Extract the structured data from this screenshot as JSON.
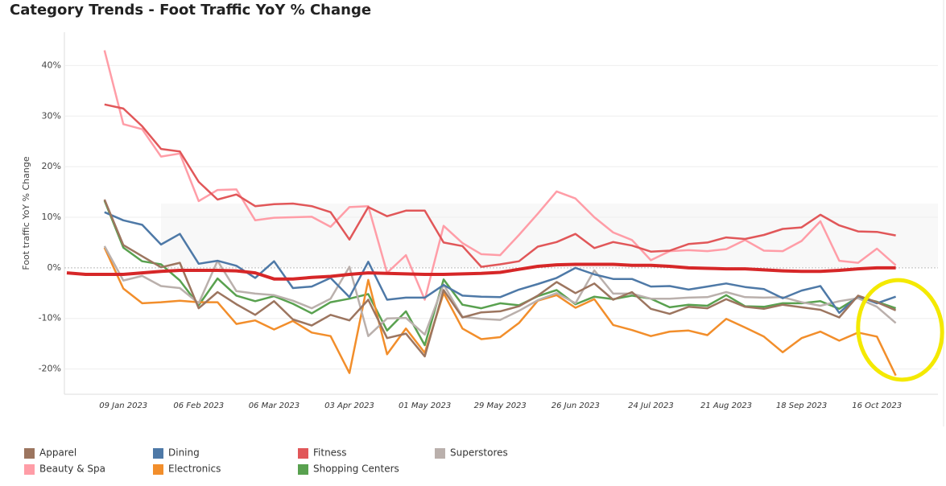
{
  "chart_data": {
    "type": "line",
    "title": "Category Trends - Foot Traffic YoY % Change",
    "y_label": "Foot traffic YoY % Change",
    "categories": [
      null,
      null,
      null,
      "09 Jan 2023",
      null,
      null,
      null,
      "06 Feb 2023",
      null,
      null,
      null,
      "06 Mar 2023",
      null,
      null,
      null,
      "03 Apr 2023",
      null,
      null,
      null,
      "01 May 2023",
      null,
      null,
      null,
      "29 May 2023",
      null,
      null,
      null,
      "26 Jun 2023",
      null,
      null,
      null,
      "24 Jul 2023",
      null,
      null,
      null,
      "21 Aug 2023",
      null,
      null,
      null,
      "18 Sep 2023",
      null,
      null,
      null,
      "16 Oct 2023",
      null
    ],
    "ylim": [
      -25,
      45
    ],
    "yticks": [
      {
        "value": -20,
        "label": "-20%"
      },
      {
        "value": -10,
        "label": "-10%"
      },
      {
        "value": 0,
        "label": "0%"
      },
      {
        "value": 10,
        "label": "10%"
      },
      {
        "value": 20,
        "label": "20%"
      },
      {
        "value": 30,
        "label": "30%"
      },
      {
        "value": 40,
        "label": "40%"
      }
    ],
    "grid": true,
    "legend": "bottom",
    "series": [
      {
        "name": "Apparel",
        "color": "#9c755f",
        "values": [
          null,
          null,
          13.5,
          4.5,
          2.3,
          0.1,
          1,
          -8,
          -4.8,
          -7.2,
          -9.3,
          -6.6,
          -10.2,
          -11.4,
          -9.3,
          -10.4,
          -6.3,
          -13.9,
          -13,
          -17.5,
          -4.4,
          -9.8,
          -8.8,
          -8.6,
          -7.6,
          -5.5,
          -2.8,
          -5,
          -3.1,
          -6.3,
          -4.8,
          -8.1,
          -9.1,
          -7.7,
          -8,
          -6.2,
          -7.7,
          -8.1,
          -7.3,
          -7.8,
          -8.3,
          -9.8,
          -5.5,
          -6.8,
          -8.4
        ]
      },
      {
        "name": "Dining",
        "color": "#4e79a7",
        "values": [
          null,
          null,
          11,
          9.4,
          8.5,
          4.6,
          6.7,
          0.8,
          1.4,
          0.4,
          -2,
          1.3,
          -4,
          -3.7,
          -2,
          -5.8,
          1.2,
          -6.3,
          -5.9,
          -5.9,
          -3.4,
          -5.5,
          -5.7,
          -5.8,
          -4.3,
          -3.2,
          -2,
          0,
          -1.3,
          -2.2,
          -2.2,
          -3.7,
          -3.6,
          -4.3,
          -3.7,
          -3.1,
          -3.8,
          -4.2,
          -6,
          -4.5,
          -3.6,
          -8.9,
          -5.6,
          -7,
          -5.7
        ]
      },
      {
        "name": "Fitness",
        "color": "#e15759",
        "values": [
          null,
          null,
          32.3,
          31.5,
          28,
          23.5,
          23,
          17,
          13.5,
          14.5,
          12.2,
          12.6,
          12.7,
          12.2,
          11,
          5.6,
          12,
          10.2,
          11.3,
          11.3,
          5,
          4.3,
          0.2,
          0.7,
          1.3,
          4.2,
          5.1,
          6.7,
          3.9,
          5.1,
          4.4,
          3.2,
          3.4,
          4.7,
          5,
          6,
          5.7,
          6.5,
          7.7,
          8,
          10.5,
          8.4,
          7.2,
          7.1,
          6.4
        ]
      },
      {
        "name": "Superstores",
        "color": "#bab0ac",
        "values": [
          null,
          null,
          4.3,
          -2.5,
          -1.6,
          -3.6,
          -4,
          -7,
          1.4,
          -4.6,
          -5.1,
          -5.4,
          -6.5,
          -8,
          -6.1,
          0.2,
          -13.5,
          -10,
          -9.9,
          -13.2,
          -3.3,
          -9.7,
          -10.1,
          -10.3,
          -8.5,
          -6.4,
          -5,
          -7,
          -0.5,
          -5.1,
          -5.1,
          -6.1,
          -6.1,
          -5.9,
          -5.8,
          -4.8,
          -5.8,
          -5.9,
          -5.8,
          -6.8,
          -7.5,
          -6.6,
          -6,
          -7.7,
          -10.9
        ]
      },
      {
        "name": "Beauty & Spa",
        "color": "#ff9da7",
        "values": [
          null,
          null,
          43,
          28.4,
          27.4,
          22,
          22.6,
          13.2,
          15.4,
          15.5,
          9.4,
          9.9,
          10,
          10.1,
          8.1,
          12,
          12.2,
          -1,
          2.5,
          -6.3,
          8.3,
          4.9,
          2.7,
          2.5,
          6.5,
          10.7,
          15.1,
          13.7,
          10,
          7,
          5.5,
          1.5,
          3.3,
          3.5,
          3.3,
          3.7,
          5.5,
          3.4,
          3.3,
          5.3,
          9.2,
          1.4,
          1,
          3.8,
          0.5
        ]
      },
      {
        "name": "Electronics",
        "color": "#f28e2b",
        "values": [
          null,
          null,
          4,
          -4.1,
          -7,
          -6.8,
          -6.5,
          -6.8,
          -6.8,
          -11.1,
          -10.4,
          -12.2,
          -10.5,
          -12.8,
          -13.5,
          -20.8,
          -2.4,
          -17.1,
          -12,
          -16.8,
          -5,
          -12,
          -14.1,
          -13.7,
          -10.9,
          -6.5,
          -5.4,
          -7.9,
          -6.2,
          -11.3,
          -12.3,
          -13.5,
          -12.6,
          -12.4,
          -13.3,
          -10.1,
          -11.8,
          -13.6,
          -16.7,
          -13.9,
          -12.6,
          -14.4,
          -12.8,
          -13.6,
          -21.3
        ]
      },
      {
        "name": "Shopping Centers",
        "color": "#59a14f",
        "values": [
          null,
          null,
          13.3,
          4,
          1.3,
          0.7,
          -2.5,
          -7.4,
          -2.1,
          -5.5,
          -6.6,
          -5.6,
          -7.1,
          -9,
          -6.8,
          -6.1,
          -5.2,
          -12.4,
          -8.6,
          -15.3,
          -2.3,
          -7.3,
          -8,
          -7,
          -7.4,
          -5.6,
          -4.4,
          -7.2,
          -5.7,
          -6.2,
          -5.5,
          -6.1,
          -7.8,
          -7.3,
          -7.5,
          -5.4,
          -7.6,
          -7.7,
          -7,
          -7,
          -6.6,
          -8.1,
          -5.8,
          -6.7,
          -8
        ]
      },
      {
        "color": "#d62728",
        "values": [
          -1,
          -1.3,
          -1.3,
          -1.3,
          -1,
          -0.7,
          -0.5,
          -0.5,
          -0.5,
          -0.6,
          -1,
          -2.2,
          -2.2,
          -1.9,
          -1.7,
          -1.3,
          -1,
          -1.1,
          -1.2,
          -1.3,
          -1.3,
          -1.2,
          -1.1,
          -0.9,
          -0.3,
          0.3,
          0.6,
          0.7,
          0.7,
          0.7,
          0.5,
          0.5,
          0.3,
          0,
          -0.1,
          -0.2,
          -0.2,
          -0.4,
          -0.6,
          -0.7,
          -0.7,
          -0.5,
          -0.2,
          0,
          0
        ]
      }
    ]
  }
}
